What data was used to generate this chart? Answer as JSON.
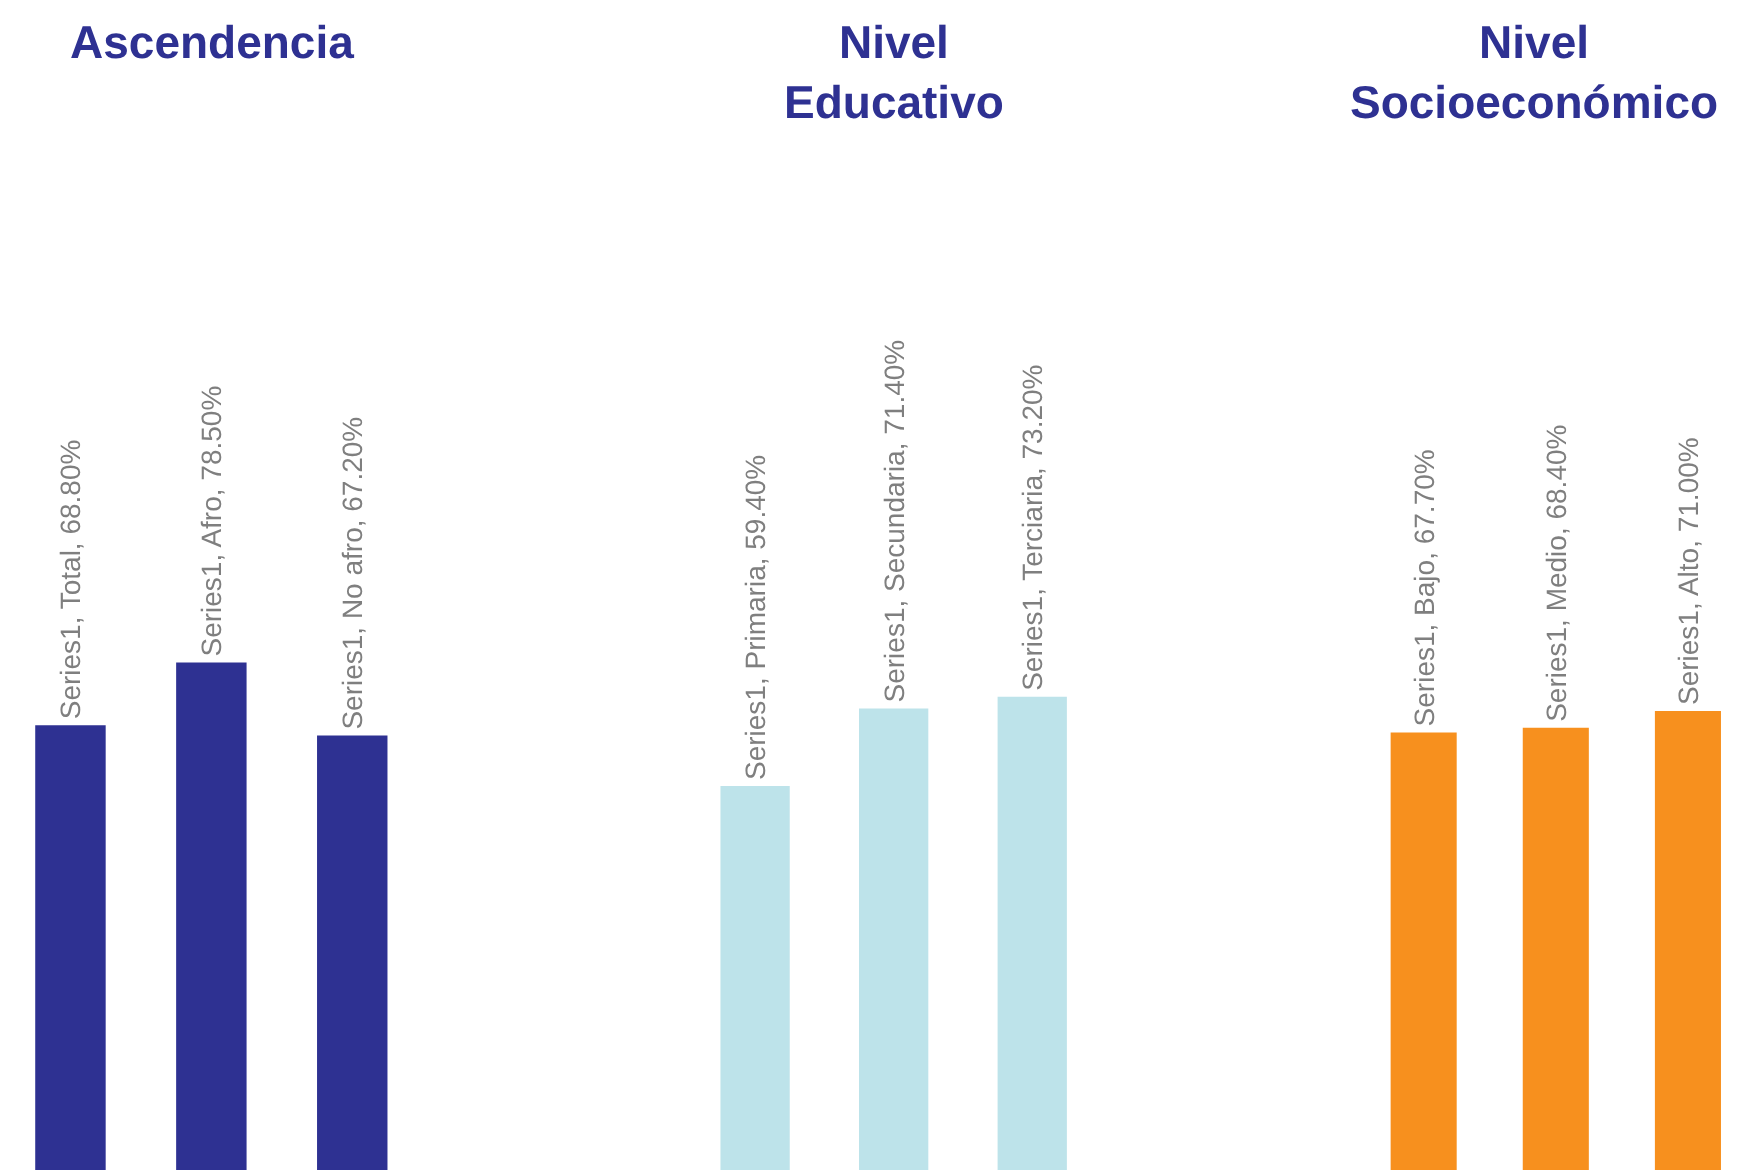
{
  "chart_data": [
    {
      "type": "bar",
      "title": "Ascendencia",
      "categories": [
        null,
        null,
        null
      ],
      "values": [
        68.8,
        78.5,
        67.2
      ],
      "color": "#2e3192",
      "value_labels": [
        "Series1, Total, 68.80%",
        "Series1, Afro, 78.50%",
        "Series1, No afro, 67.20%"
      ],
      "ylim": [
        0,
        181
      ],
      "tick_labels": false
    },
    {
      "type": "bar",
      "title": "Nivel Educativo",
      "categories": [
        null,
        null,
        null
      ],
      "values": [
        59.4,
        71.4,
        73.2
      ],
      "color": "#bde3ea",
      "value_labels": [
        "Series1, Primaria, 59.40%",
        "Series1, Secundaria, 71.40%",
        "Series1, Terciaria, 73.20%"
      ],
      "ylim": [
        0,
        181
      ],
      "tick_labels": false
    },
    {
      "type": "bar",
      "title": "Nivel Socioeconómico",
      "categories": [
        null,
        null,
        null
      ],
      "values": [
        67.7,
        68.4,
        71.0
      ],
      "color": "#f7901e",
      "value_labels": [
        "Series1, Bajo, 67.70%",
        "Series1, Medio, 68.40%",
        "Series1, Alto, 71.00%"
      ],
      "ylim": [
        0,
        181
      ],
      "tick_labels": false
    }
  ]
}
